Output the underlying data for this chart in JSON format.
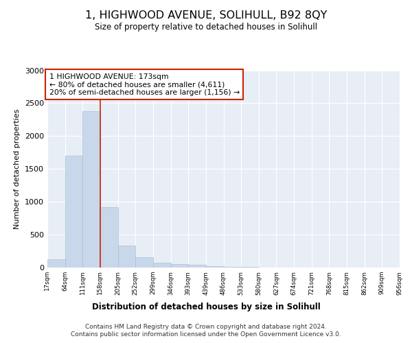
{
  "title": "1, HIGHWOOD AVENUE, SOLIHULL, B92 8QY",
  "subtitle": "Size of property relative to detached houses in Solihull",
  "xlabel": "Distribution of detached houses by size in Solihull",
  "ylabel": "Number of detached properties",
  "footer_line1": "Contains HM Land Registry data © Crown copyright and database right 2024.",
  "footer_line2": "Contains public sector information licensed under the Open Government Licence v3.0.",
  "annotation_line1": "1 HIGHWOOD AVENUE: 173sqm",
  "annotation_line2": "← 80% of detached houses are smaller (4,611)",
  "annotation_line3": "20% of semi-detached houses are larger (1,156) →",
  "property_size_bin_edge": 3,
  "bar_color": "#c8d8ea",
  "bar_edge_color": "#a0b8cc",
  "background_color": "#e8eef6",
  "grid_color": "#ffffff",
  "red_line_color": "#cc2200",
  "annotation_box_edge": "#cc2200",
  "bins": [
    17,
    64,
    111,
    158,
    205,
    252,
    299,
    346,
    393,
    439,
    486,
    533,
    580,
    627,
    674,
    721,
    768,
    815,
    862,
    909,
    956
  ],
  "counts": [
    125,
    1700,
    2380,
    920,
    335,
    155,
    75,
    55,
    38,
    18,
    12,
    7,
    5,
    3,
    2,
    2,
    2,
    1,
    1,
    1
  ],
  "ylim": [
    0,
    3000
  ],
  "yticks": [
    0,
    500,
    1000,
    1500,
    2000,
    2500,
    3000
  ]
}
